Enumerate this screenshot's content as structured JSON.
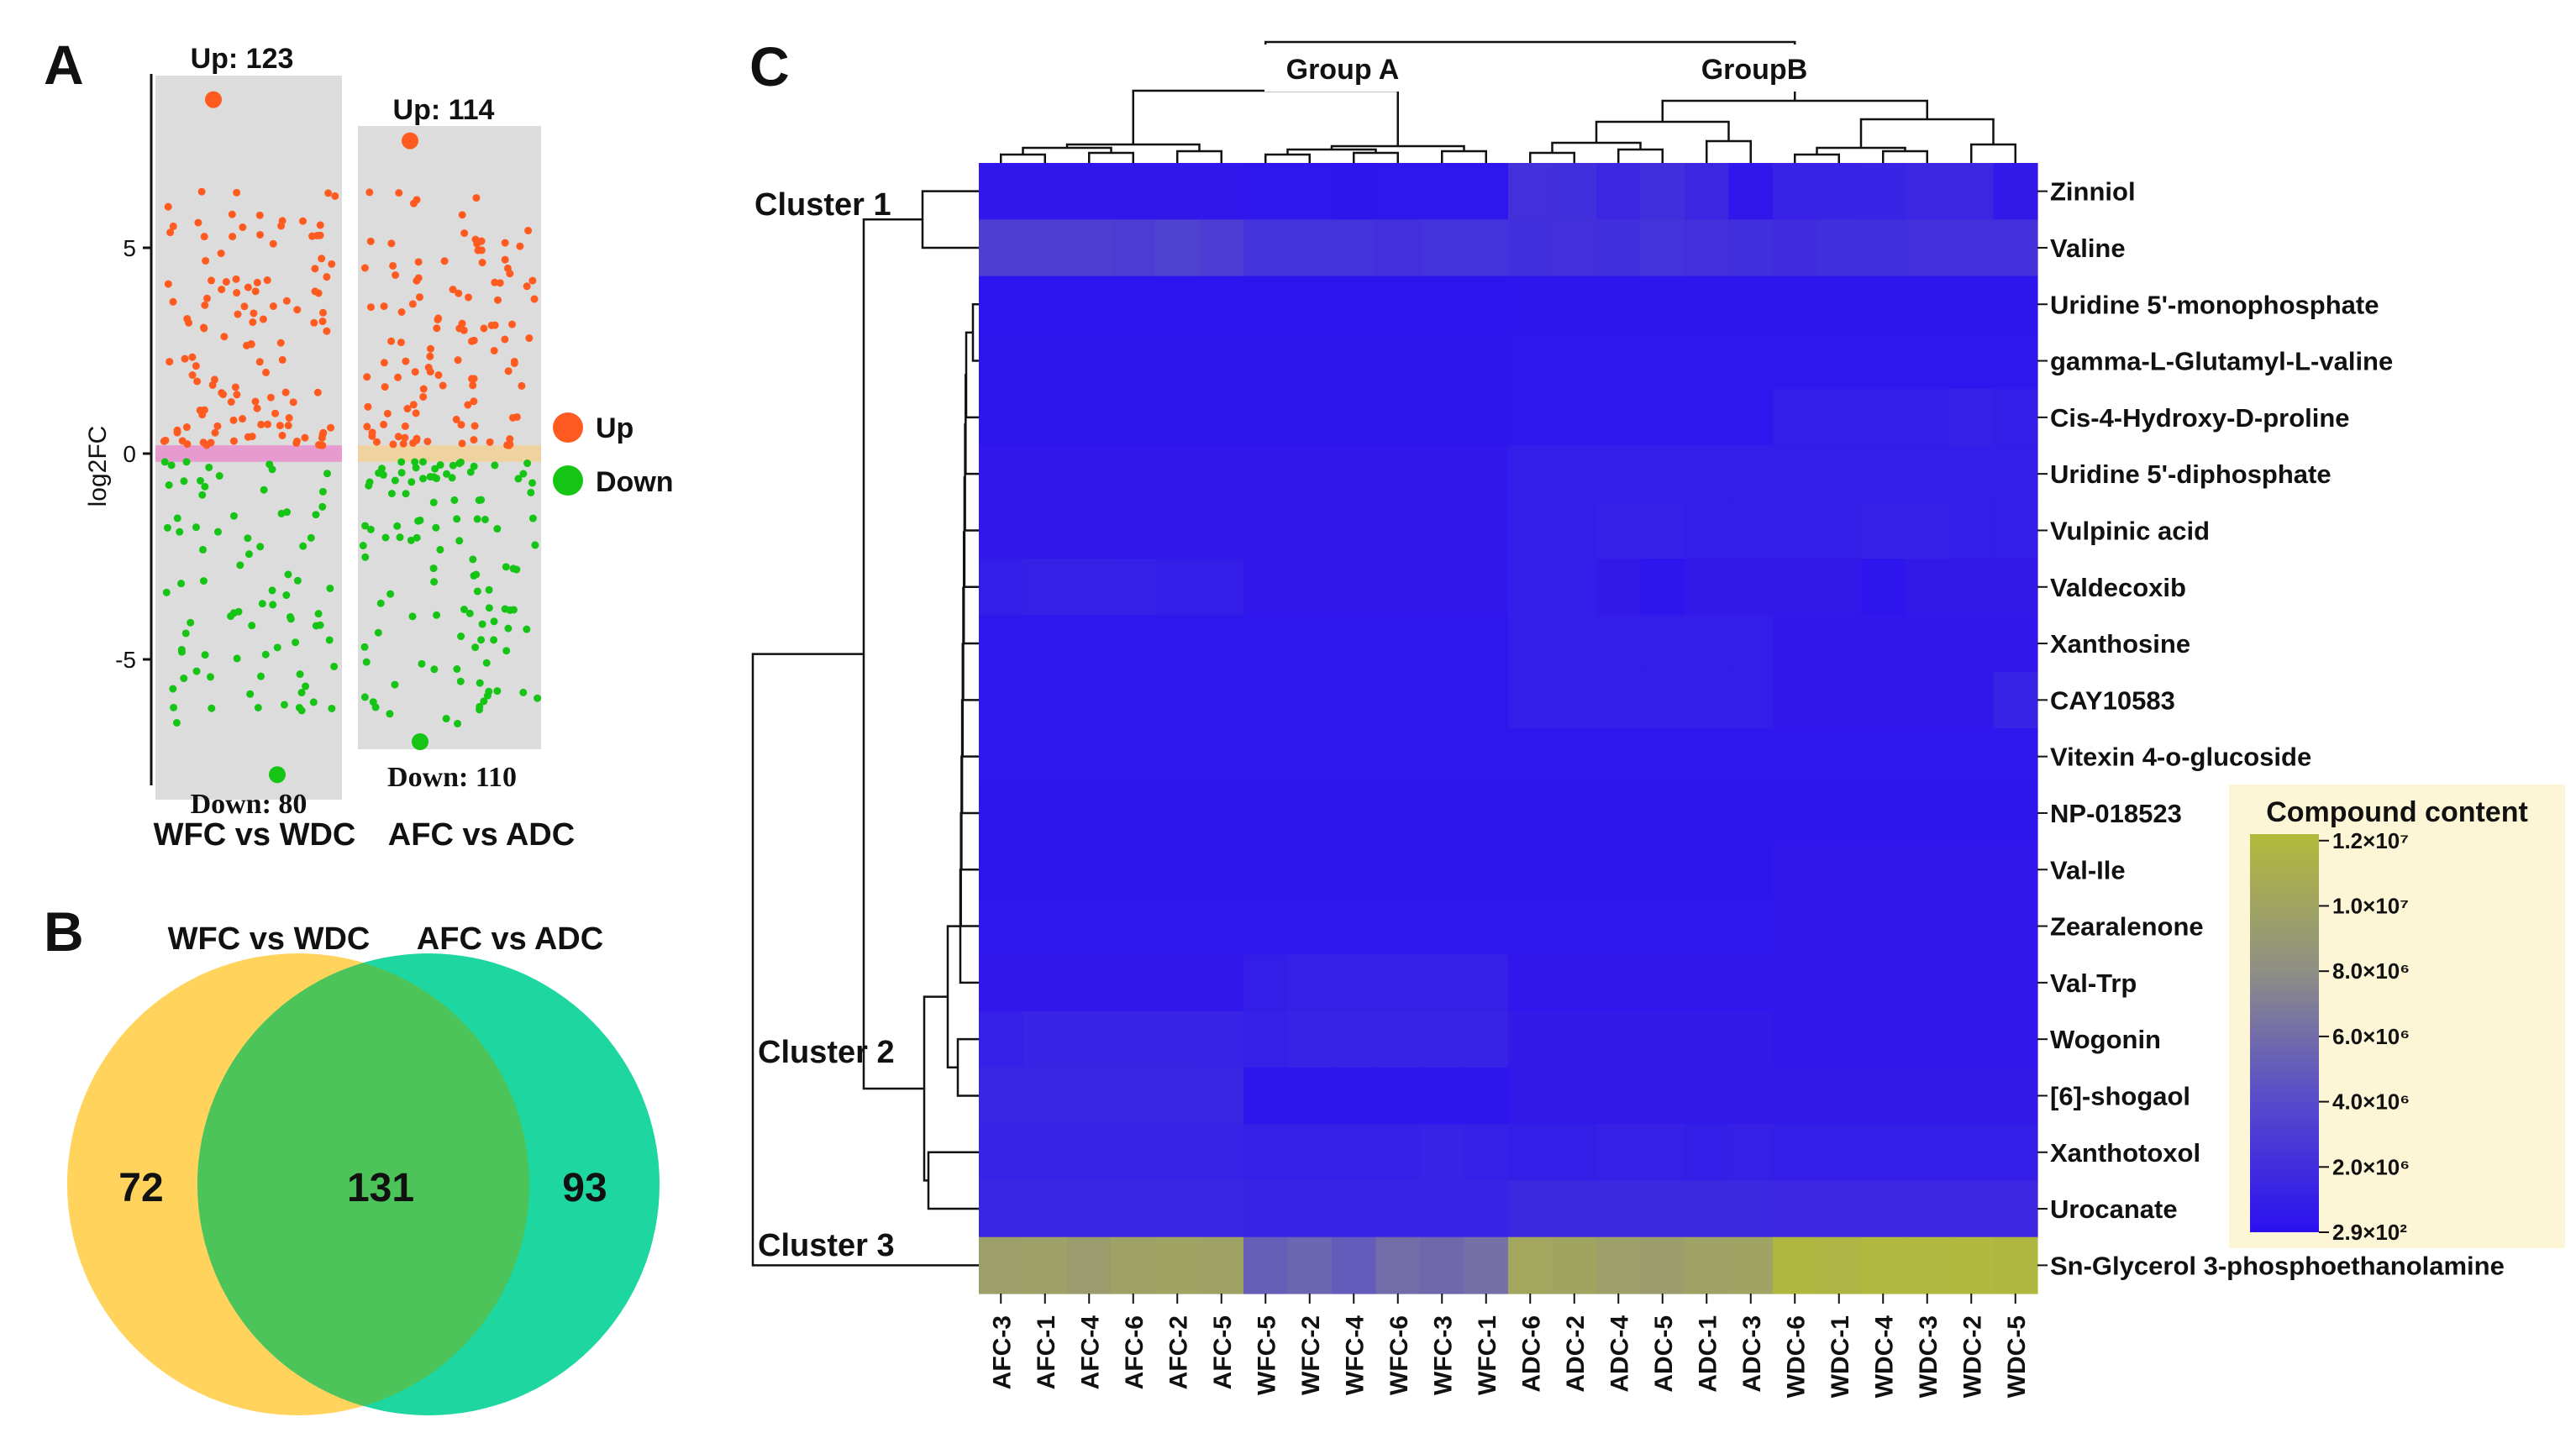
{
  "panels": {
    "a": "A",
    "b": "B",
    "c": "C"
  },
  "colors": {
    "up": "#ff5a1f",
    "down": "#16c416",
    "panel_bg": "#dcdcdc",
    "venn_left": "#ffd35c",
    "venn_right": "#1ed6a0",
    "venn_overlap": "#4cc45a"
  },
  "chart_data": [
    {
      "type": "scatter",
      "panel": "A",
      "ylabel": "log2FC",
      "yticks": [
        -5,
        0,
        5
      ],
      "ylim": [
        -8,
        9
      ],
      "legend": [
        "Up",
        "Down"
      ],
      "groups": [
        {
          "name": "WFC vs WDC",
          "up_label": "Up: 123",
          "down_label": "Down: 80",
          "up": 123,
          "down": 80,
          "max_up": 8.6,
          "min_down": -7.8,
          "mid_band": "#e79ad0"
        },
        {
          "name": "AFC vs ADC",
          "up_label": "Up: 114",
          "down_label": "Down: 110",
          "up": 114,
          "down": 110,
          "max_up": 7.6,
          "min_down": -7.0,
          "mid_band": "#eed3a1"
        }
      ]
    },
    {
      "type": "venn",
      "panel": "B",
      "sets": [
        "WFC vs WDC",
        "AFC vs ADC"
      ],
      "left_only": 72,
      "both": 131,
      "right_only": 93
    },
    {
      "type": "heatmap",
      "panel": "C",
      "top_groups": [
        "Group A",
        "GroupB"
      ],
      "clusters": [
        "Cluster 1",
        "Cluster 2",
        "Cluster 3"
      ],
      "columns": [
        "AFC-3",
        "AFC-1",
        "AFC-4",
        "AFC-6",
        "AFC-2",
        "AFC-5",
        "WFC-5",
        "WFC-2",
        "WFC-4",
        "WFC-6",
        "WFC-3",
        "WFC-1",
        "ADC-6",
        "ADC-2",
        "ADC-4",
        "ADC-5",
        "ADC-1",
        "ADC-3",
        "WDC-6",
        "WDC-1",
        "WDC-4",
        "WDC-3",
        "WDC-2",
        "WDC-5"
      ],
      "rows": [
        "Zinniol",
        "Valine",
        "Uridine 5'-monophosphate",
        "gamma-L-Glutamyl-L-valine",
        "Cis-4-Hydroxy-D-proline",
        "Uridine 5'-diphosphate",
        "Vulpinic acid",
        "Valdecoxib",
        "Xanthosine",
        "CAY10583",
        "Vitexin 4-o-glucoside",
        "NP-018523",
        "Val-Ile",
        "Zearalenone",
        "Val-Trp",
        "Wogonin",
        "[6]-shogaol",
        "Xanthotoxol",
        "Urocanate",
        "Sn-Glycerol 3-phosphoethanolamine"
      ],
      "values_1e6": [
        [
          0.5,
          0.5,
          0.5,
          0.5,
          0.5,
          0.5,
          0.4,
          0.4,
          0.3,
          0.4,
          0.4,
          0.4,
          2.2,
          2.0,
          1.5,
          2.0,
          1.5,
          0.5,
          1.2,
          1.2,
          1.3,
          1.5,
          1.5,
          0.6
        ],
        [
          3.2,
          3.2,
          3.2,
          3.0,
          3.4,
          3.0,
          2.3,
          2.3,
          2.3,
          2.2,
          2.3,
          2.3,
          2.0,
          2.2,
          2.0,
          2.3,
          2.2,
          2.0,
          1.9,
          2.0,
          2.0,
          2.2,
          2.2,
          2.2
        ],
        [
          0.2,
          0.2,
          0.2,
          0.2,
          0.2,
          0.2,
          0.2,
          0.2,
          0.2,
          0.2,
          0.2,
          0.2,
          0.3,
          0.3,
          0.3,
          0.3,
          0.3,
          0.3,
          0.3,
          0.3,
          0.3,
          0.3,
          0.3,
          0.3
        ],
        [
          0.3,
          0.3,
          0.3,
          0.3,
          0.3,
          0.3,
          0.3,
          0.3,
          0.3,
          0.3,
          0.3,
          0.3,
          0.4,
          0.4,
          0.4,
          0.4,
          0.4,
          0.4,
          0.4,
          0.4,
          0.4,
          0.4,
          0.4,
          0.4
        ],
        [
          0.3,
          0.3,
          0.3,
          0.3,
          0.3,
          0.3,
          0.3,
          0.3,
          0.3,
          0.3,
          0.3,
          0.3,
          0.4,
          0.4,
          0.4,
          0.4,
          0.4,
          0.4,
          0.9,
          0.9,
          0.9,
          0.9,
          1.1,
          0.9
        ],
        [
          0.5,
          0.5,
          0.5,
          0.5,
          0.5,
          0.5,
          0.5,
          0.5,
          0.5,
          0.5,
          0.5,
          0.5,
          0.8,
          0.8,
          0.8,
          0.8,
          0.8,
          0.8,
          0.8,
          0.8,
          0.8,
          0.8,
          0.8,
          0.8
        ],
        [
          0.5,
          0.5,
          0.5,
          0.5,
          0.5,
          0.5,
          0.5,
          0.5,
          0.5,
          0.5,
          0.5,
          0.5,
          0.8,
          0.8,
          1.0,
          1.0,
          0.8,
          0.8,
          0.9,
          0.9,
          1.1,
          1.1,
          0.9,
          0.8
        ],
        [
          0.8,
          1.1,
          1.1,
          1.0,
          0.9,
          0.9,
          0.5,
          0.5,
          0.5,
          0.5,
          0.5,
          0.5,
          0.8,
          0.8,
          0.6,
          0.3,
          0.6,
          0.6,
          0.6,
          0.6,
          0.3,
          0.6,
          0.6,
          0.6
        ],
        [
          0.4,
          0.4,
          0.4,
          0.4,
          0.4,
          0.4,
          0.4,
          0.4,
          0.4,
          0.4,
          0.4,
          0.4,
          0.8,
          0.8,
          0.8,
          0.8,
          0.8,
          0.8,
          0.5,
          0.5,
          0.5,
          0.5,
          0.5,
          0.5
        ],
        [
          0.4,
          0.4,
          0.4,
          0.4,
          0.4,
          0.4,
          0.4,
          0.4,
          0.4,
          0.4,
          0.4,
          0.4,
          0.8,
          0.8,
          0.8,
          0.8,
          0.8,
          0.8,
          0.5,
          0.5,
          0.5,
          0.5,
          0.5,
          1.2
        ],
        [
          0.4,
          0.4,
          0.4,
          0.4,
          0.4,
          0.4,
          0.4,
          0.4,
          0.4,
          0.4,
          0.4,
          0.4,
          0.4,
          0.4,
          0.4,
          0.4,
          0.4,
          0.4,
          0.4,
          0.4,
          0.4,
          0.4,
          0.4,
          0.4
        ],
        [
          0.3,
          0.3,
          0.3,
          0.3,
          0.3,
          0.3,
          0.3,
          0.3,
          0.3,
          0.3,
          0.3,
          0.3,
          0.3,
          0.3,
          0.3,
          0.3,
          0.3,
          0.3,
          0.3,
          0.3,
          0.3,
          0.3,
          0.3,
          0.3
        ],
        [
          0.3,
          0.3,
          0.3,
          0.3,
          0.3,
          0.3,
          0.3,
          0.3,
          0.3,
          0.3,
          0.3,
          0.3,
          0.3,
          0.3,
          0.3,
          0.3,
          0.3,
          0.3,
          0.5,
          0.5,
          0.5,
          0.5,
          0.5,
          0.5
        ],
        [
          0.4,
          0.4,
          0.4,
          0.4,
          0.4,
          0.4,
          0.4,
          0.4,
          0.4,
          0.4,
          0.4,
          0.4,
          0.4,
          0.4,
          0.4,
          0.4,
          0.4,
          0.4,
          0.5,
          0.5,
          0.5,
          0.5,
          0.5,
          0.5
        ],
        [
          0.5,
          0.5,
          0.5,
          0.5,
          0.5,
          0.5,
          0.9,
          1.1,
          1.1,
          1.1,
          1.1,
          1.1,
          0.5,
          0.5,
          0.5,
          0.5,
          0.5,
          0.5,
          0.5,
          0.5,
          0.5,
          0.5,
          0.5,
          0.5
        ],
        [
          1.0,
          1.3,
          1.3,
          1.3,
          1.3,
          1.2,
          1.0,
          1.2,
          1.2,
          1.2,
          1.2,
          1.2,
          0.7,
          0.7,
          0.7,
          0.7,
          0.7,
          0.7,
          0.5,
          0.5,
          0.5,
          0.5,
          0.5,
          0.5
        ],
        [
          1.4,
          1.4,
          1.4,
          1.4,
          1.4,
          1.4,
          0.3,
          0.3,
          0.3,
          0.3,
          0.3,
          0.3,
          0.6,
          0.6,
          0.6,
          0.6,
          0.6,
          0.6,
          0.6,
          0.6,
          0.6,
          0.6,
          0.6,
          0.6
        ],
        [
          1.2,
          1.2,
          1.2,
          1.2,
          1.2,
          1.2,
          1.0,
          1.0,
          1.0,
          1.0,
          1.2,
          1.0,
          0.9,
          0.9,
          1.1,
          1.1,
          0.9,
          1.1,
          0.9,
          0.9,
          0.9,
          0.9,
          0.9,
          0.9
        ],
        [
          1.4,
          1.4,
          1.4,
          1.4,
          1.4,
          1.4,
          1.3,
          1.3,
          1.3,
          1.3,
          1.3,
          1.3,
          1.6,
          1.6,
          1.6,
          1.6,
          1.6,
          1.6,
          1.5,
          1.5,
          1.5,
          1.5,
          1.5,
          1.5
        ],
        [
          9.6,
          9.7,
          9.3,
          9.8,
          9.9,
          9.8,
          5.2,
          5.6,
          5.0,
          6.0,
          5.8,
          6.2,
          10.2,
          10.0,
          9.6,
          9.4,
          9.8,
          9.9,
          11.8,
          11.6,
          11.9,
          11.9,
          12.0,
          11.8
        ]
      ],
      "colorbar": {
        "title": "Compound content",
        "tick_labels": [
          "1.2×10⁷",
          "1.0×10⁷",
          "8.0×10⁶",
          "6.0×10⁶",
          "4.0×10⁶",
          "2.0×10⁶",
          "2.9×10²"
        ],
        "tick_values_1e6": [
          12,
          10,
          8,
          6,
          4,
          2,
          0.00029
        ],
        "range_1e6": [
          0.00029,
          12.2
        ],
        "colors": [
          "#2b10f0",
          "#6a61b8",
          "#9fa078",
          "#b0b83e"
        ]
      }
    }
  ]
}
